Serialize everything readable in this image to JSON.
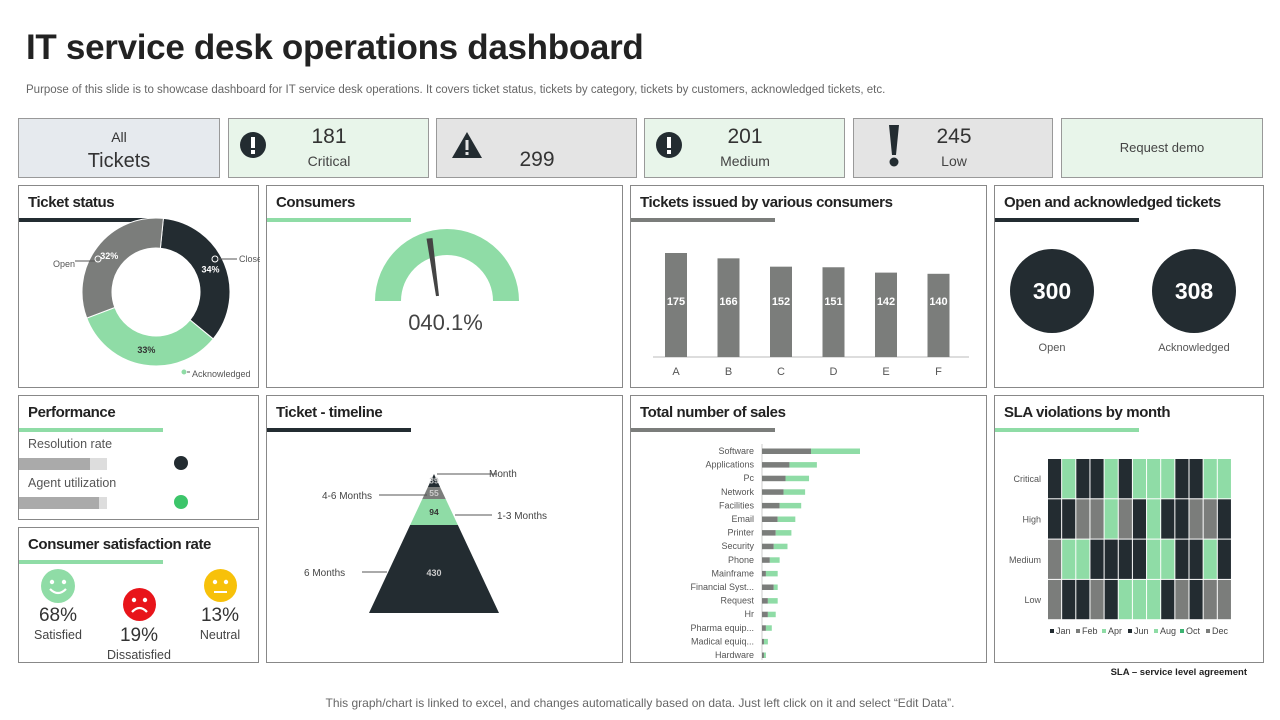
{
  "title": "IT service desk operations dashboard",
  "subtitle": "Purpose of this slide is to showcase dashboard for IT service desk operations. It covers ticket status, tickets by category, tickets by customers, acknowledged tickets, etc.",
  "kpis": {
    "all": {
      "top": "All",
      "bottom": "Tickets"
    },
    "critical": {
      "value": "181",
      "label": "Critical",
      "icon": "exclamation-circle-icon"
    },
    "warning": {
      "value": "299",
      "icon": "warning-triangle-icon"
    },
    "medium": {
      "value": "201",
      "label": "Medium",
      "icon": "exclamation-circle-icon"
    },
    "low": {
      "value": "245",
      "label": "Low",
      "icon": "exclamation-icon"
    },
    "request_demo": "Request demo"
  },
  "colors": {
    "dark": "#232c31",
    "gray": "#7b7d7b",
    "green": "#8fdca6",
    "light_green": "#e8f5ea"
  },
  "ticket_status": {
    "title": "Ticket status",
    "chart_data": {
      "type": "pie",
      "slices": [
        {
          "label": "Closed",
          "value": 34,
          "text": "34%"
        },
        {
          "label": "Acknowledged",
          "value": 33,
          "text": "33%"
        },
        {
          "label": "Open",
          "value": 32,
          "text": "32%"
        }
      ]
    }
  },
  "consumers": {
    "title": "Consumers",
    "value_text": "040.1%",
    "value": 40.1
  },
  "tickets_issued": {
    "title": "Tickets issued by various consumers",
    "chart_data": {
      "type": "bar",
      "categories": [
        "A",
        "B",
        "C",
        "D",
        "E",
        "F"
      ],
      "values": [
        175,
        166,
        152,
        151,
        142,
        140
      ]
    }
  },
  "open_ack": {
    "title": "Open and acknowledged tickets",
    "items": [
      {
        "value": "300",
        "label": "Open"
      },
      {
        "value": "308",
        "label": "Acknowledged"
      }
    ]
  },
  "performance": {
    "title": "Performance",
    "items": [
      {
        "label": "Resolution rate",
        "value": 0.81,
        "dot": "#232c31"
      },
      {
        "label": "Agent utilization",
        "value": 0.91,
        "dot": "#3cc56a"
      }
    ]
  },
  "csat": {
    "title": "Consumer satisfaction rate",
    "items": [
      {
        "value": "68%",
        "label": "Satisfied",
        "icon": "smiley-happy-icon"
      },
      {
        "value": "19%",
        "label": "Dissatisfied",
        "icon": "smiley-sad-icon"
      },
      {
        "value": "13%",
        "label": "Neutral",
        "icon": "smiley-neutral-icon"
      }
    ]
  },
  "timeline": {
    "title": "Ticket - timeline",
    "chart_data": {
      "type": "funnel",
      "segments": [
        {
          "label": "Month",
          "value": 39
        },
        {
          "label": "4-6 Months",
          "value": 55
        },
        {
          "label": "1-3 Months",
          "value": 94
        },
        {
          "label": "6 Months",
          "value": 430
        }
      ]
    }
  },
  "sales": {
    "title": "Total number of sales",
    "chart_data": {
      "type": "bar",
      "orientation": "horizontal",
      "stacked": true,
      "categories": [
        "Software",
        "Applications",
        "Pc",
        "Network",
        "Facilities",
        "Email",
        "Printer",
        "Security",
        "Phone",
        "Mainframe",
        "Financial Syst...",
        "Request",
        "Hr",
        "Pharma equip...",
        "Madical equiq...",
        "Hardware"
      ],
      "series": [
        {
          "name": "Series 1",
          "values": [
            25,
            14,
            12,
            11,
            9,
            8,
            7,
            6,
            4,
            2,
            6,
            3,
            3,
            2,
            1,
            1
          ]
        },
        {
          "name": "Series 2",
          "values": [
            25,
            14,
            12,
            11,
            11,
            9,
            8,
            7,
            5,
            6,
            2,
            5,
            4,
            3,
            2,
            1
          ]
        }
      ]
    }
  },
  "sla": {
    "title": "SLA violations by month",
    "chart_data": {
      "type": "heatmap",
      "rows": [
        "Critical",
        "High",
        "Medium",
        "Low"
      ],
      "legend": [
        "Jan",
        "Feb",
        "Apr",
        "Jun",
        "Aug",
        "Oct",
        "Dec"
      ],
      "cells": [
        "DGDDGDGGGDDGG",
        "DDYYGYDGDDYYD",
        "YGGDDDDGGDDGD",
        "YDDYDGGGDYDYY"
      ]
    }
  },
  "sla_note": "SLA – service level agreement",
  "footer": "This graph/chart is linked to excel,  and changes automatically based on data. Just left click on it and select “Edit Data”."
}
